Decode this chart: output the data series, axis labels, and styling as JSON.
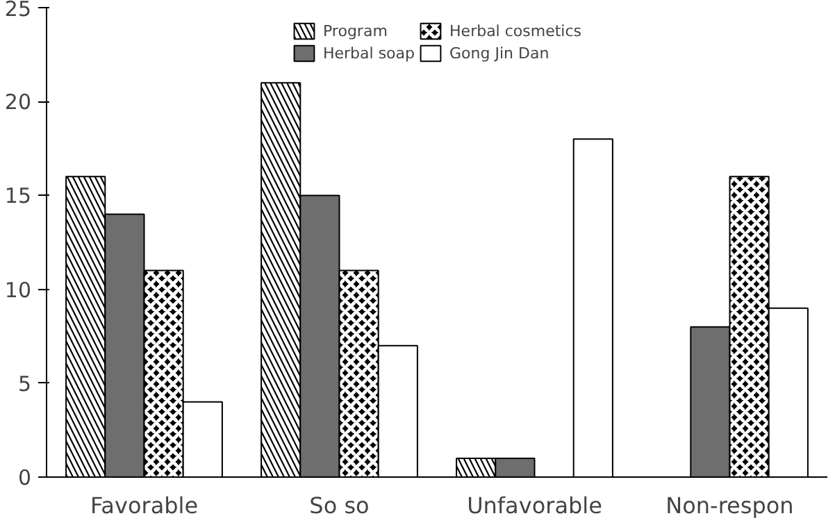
{
  "chart_data": {
    "type": "bar",
    "categories": [
      "Favorable",
      "So so",
      "Unfavorable",
      "Non-respon"
    ],
    "series": [
      {
        "name": "Program",
        "color": "#000000",
        "values": [
          16,
          21,
          1,
          0
        ]
      },
      {
        "name": "Herbal soap",
        "color": "#6e6e6e",
        "values": [
          14,
          15,
          1,
          8
        ]
      },
      {
        "name": "Herbal cosmetics",
        "color": "#000000",
        "values": [
          11,
          11,
          0,
          16
        ]
      },
      {
        "name": "Gong Jin Dan",
        "color": "#ffffff",
        "values": [
          4,
          7,
          18,
          9
        ]
      }
    ],
    "ylim": [
      0,
      25
    ],
    "yticks": [
      0,
      5,
      10,
      15,
      20,
      25
    ],
    "grid": false,
    "legend": "top"
  }
}
